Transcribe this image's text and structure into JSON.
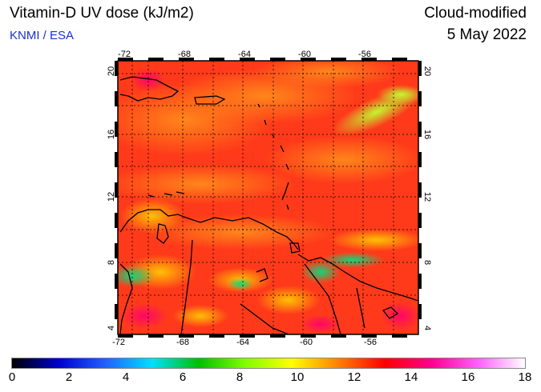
{
  "header": {
    "title": "Vitamin-D UV dose (kJ/m2)",
    "subtitle": "KNMI / ESA",
    "mode": "Cloud-modified",
    "date": "5 May 2022"
  },
  "map": {
    "lon_ticks": [
      "-72",
      "-68",
      "-64",
      "-60",
      "-56"
    ],
    "lat_ticks": [
      "4",
      "8",
      "12",
      "16",
      "20"
    ],
    "lon_range": [
      -73,
      -53
    ],
    "lat_range": [
      3.5,
      20.5
    ],
    "land_line_color": "#000000",
    "grid_color": "#000000"
  },
  "colorbar": {
    "labels": [
      "0",
      "2",
      "4",
      "6",
      "8",
      "10",
      "12",
      "14",
      "16",
      "18"
    ],
    "range": [
      0,
      18
    ],
    "colors": [
      "#000000",
      "#0000d0",
      "#2060ff",
      "#00e0ff",
      "#00c000",
      "#80ff00",
      "#ffff00",
      "#ff8000",
      "#ff0000",
      "#ff0090",
      "#ff60ff",
      "#ffffff"
    ]
  }
}
